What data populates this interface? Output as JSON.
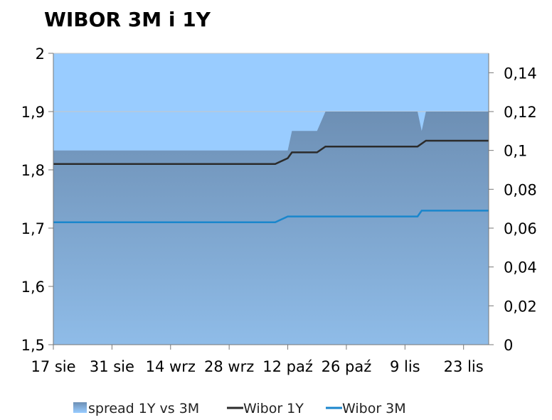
{
  "chart_data": {
    "type": "line",
    "title": "WIBOR 3M i 1Y",
    "x_tick_labels": [
      "17 sie",
      "31 sie",
      "14 wrz",
      "28 wrz",
      "12 paź",
      "26 paź",
      "9 lis",
      "23 lis"
    ],
    "y_left": {
      "range": [
        1.5,
        2.0
      ],
      "ticks": [
        "1,5",
        "1,6",
        "1,7",
        "1,8",
        "1,9",
        "2"
      ]
    },
    "y_right": {
      "range": [
        0,
        0.15
      ],
      "ticks": [
        "0",
        "0,02",
        "0,04",
        "0,06",
        "0,08",
        "0,1",
        "0,12",
        "0,14"
      ]
    },
    "x_range_days": [
      0,
      104
    ],
    "series": [
      {
        "name": "spread 1Y vs 3M",
        "type": "area",
        "axis": "right",
        "color": "#6f95bd",
        "points": [
          [
            0,
            0.1
          ],
          [
            56,
            0.1
          ],
          [
            57,
            0.11
          ],
          [
            63,
            0.11
          ],
          [
            65,
            0.12
          ],
          [
            87,
            0.12
          ],
          [
            88,
            0.11
          ],
          [
            89,
            0.12
          ],
          [
            104,
            0.12
          ]
        ]
      },
      {
        "name": "Wibor 1Y",
        "type": "line",
        "axis": "left",
        "color": "#2b2b2b",
        "points": [
          [
            0,
            1.81
          ],
          [
            53,
            1.81
          ],
          [
            56,
            1.82
          ],
          [
            57,
            1.83
          ],
          [
            63,
            1.83
          ],
          [
            65,
            1.84
          ],
          [
            87,
            1.84
          ],
          [
            89,
            1.85
          ],
          [
            104,
            1.85
          ]
        ]
      },
      {
        "name": "Wibor 3M",
        "type": "line",
        "axis": "left",
        "color": "#1a86cc",
        "points": [
          [
            0,
            1.71
          ],
          [
            53,
            1.71
          ],
          [
            56,
            1.72
          ],
          [
            87,
            1.72
          ],
          [
            88,
            1.73
          ],
          [
            104,
            1.73
          ]
        ]
      }
    ],
    "legend": {
      "placement": "bottom"
    },
    "grid": {
      "horizontal": true,
      "vertical": false,
      "color": "#c8c8c8"
    },
    "plot_background": "#99ccff"
  }
}
